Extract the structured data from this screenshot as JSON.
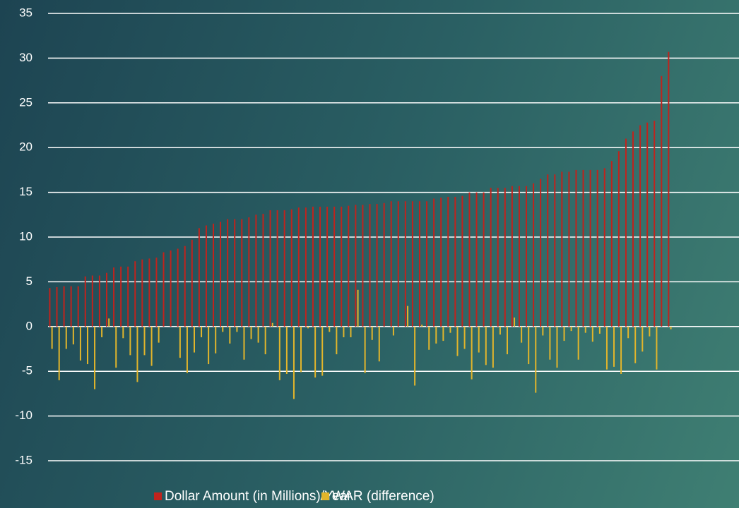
{
  "chart_data": {
    "type": "bar",
    "categories": [
      null,
      null,
      null,
      null,
      null,
      null,
      null,
      null,
      null,
      null,
      null,
      null,
      null,
      null,
      null,
      null,
      null,
      null,
      null,
      null,
      null,
      null,
      null,
      null,
      null,
      null,
      null,
      null,
      null,
      null,
      null,
      null,
      null,
      null,
      null,
      null,
      null,
      null,
      null,
      null,
      null,
      null,
      null,
      null,
      null,
      null,
      null,
      null,
      null,
      null,
      null,
      null,
      null,
      null,
      null,
      null,
      null,
      null,
      null,
      null,
      null,
      null,
      null,
      null,
      null,
      null,
      null,
      null,
      null,
      null,
      null,
      null,
      null,
      null,
      null,
      null,
      null,
      null,
      null,
      null,
      null,
      null,
      null,
      null,
      null,
      null,
      null,
      null
    ],
    "series": [
      {
        "name": "Dollar Amount (in Millions)/Year",
        "color": "#c0231d",
        "values": [
          4.3,
          4.4,
          4.5,
          4.5,
          4.5,
          5.6,
          5.7,
          5.7,
          6.0,
          6.6,
          6.7,
          6.7,
          7.3,
          7.5,
          7.6,
          7.7,
          8.3,
          8.5,
          8.7,
          9.0,
          9.7,
          11.0,
          11.3,
          11.5,
          11.7,
          12.0,
          12.0,
          12.0,
          12.2,
          12.5,
          12.6,
          13.0,
          13.0,
          13.0,
          13.1,
          13.3,
          13.3,
          13.4,
          13.4,
          13.4,
          13.4,
          13.4,
          13.5,
          13.6,
          13.6,
          13.7,
          13.7,
          13.8,
          14.0,
          14.0,
          14.0,
          14.0,
          14.0,
          14.0,
          14.3,
          14.4,
          14.5,
          14.5,
          14.6,
          15.0,
          15.0,
          15.0,
          15.5,
          15.5,
          15.5,
          15.7,
          15.7,
          15.7,
          16.0,
          16.5,
          17.0,
          17.0,
          17.3,
          17.3,
          17.5,
          17.5,
          17.5,
          17.5,
          17.7,
          18.5,
          19.6,
          21.0,
          21.8,
          22.5,
          22.8,
          23.0,
          28.0,
          30.7
        ]
      },
      {
        "name": "WAR (difference)",
        "color": "#e2b52b",
        "values": [
          -2.5,
          -6,
          -2.5,
          -2,
          -3.8,
          -4.2,
          -7,
          -1.2,
          0.9,
          -4.6,
          -1.3,
          -3.2,
          -6.2,
          -3.2,
          -4.4,
          -1.8,
          0,
          0,
          -3.5,
          -5.2,
          -2.9,
          -1.2,
          -4.2,
          -3,
          -0.6,
          -1.9,
          -0.6,
          -3.7,
          -1.4,
          -1.8,
          -3.1,
          0.4,
          -6,
          -5.3,
          -8.1,
          -5.1,
          -0.2,
          -5.7,
          -5.5,
          -0.6,
          -3.1,
          -1.2,
          -1.2,
          4.1,
          -5.2,
          -1.5,
          -3.9,
          0,
          -1,
          0,
          2.3,
          -6.6,
          0.2,
          -2.6,
          -1.9,
          -1.6,
          -0.7,
          -3.3,
          -2.5,
          -5.9,
          -2.9,
          -4.3,
          -4.6,
          -0.9,
          -3.1,
          1,
          -1.8,
          -4.2,
          -7.4,
          -1,
          -3.7,
          -4.6,
          -1.6,
          -0.5,
          -3.7,
          -0.7,
          -1.7,
          -0.8,
          -4.8,
          -4.5,
          -5.3,
          -1.3,
          -4.1,
          -2.8,
          -1.1,
          -4.8,
          0,
          -0.3
        ]
      }
    ],
    "ylim": [
      -15,
      35
    ],
    "yticks": [
      -15,
      -10,
      -5,
      0,
      5,
      10,
      15,
      20,
      25,
      30,
      35
    ],
    "grid": true,
    "legend": "bottom"
  }
}
